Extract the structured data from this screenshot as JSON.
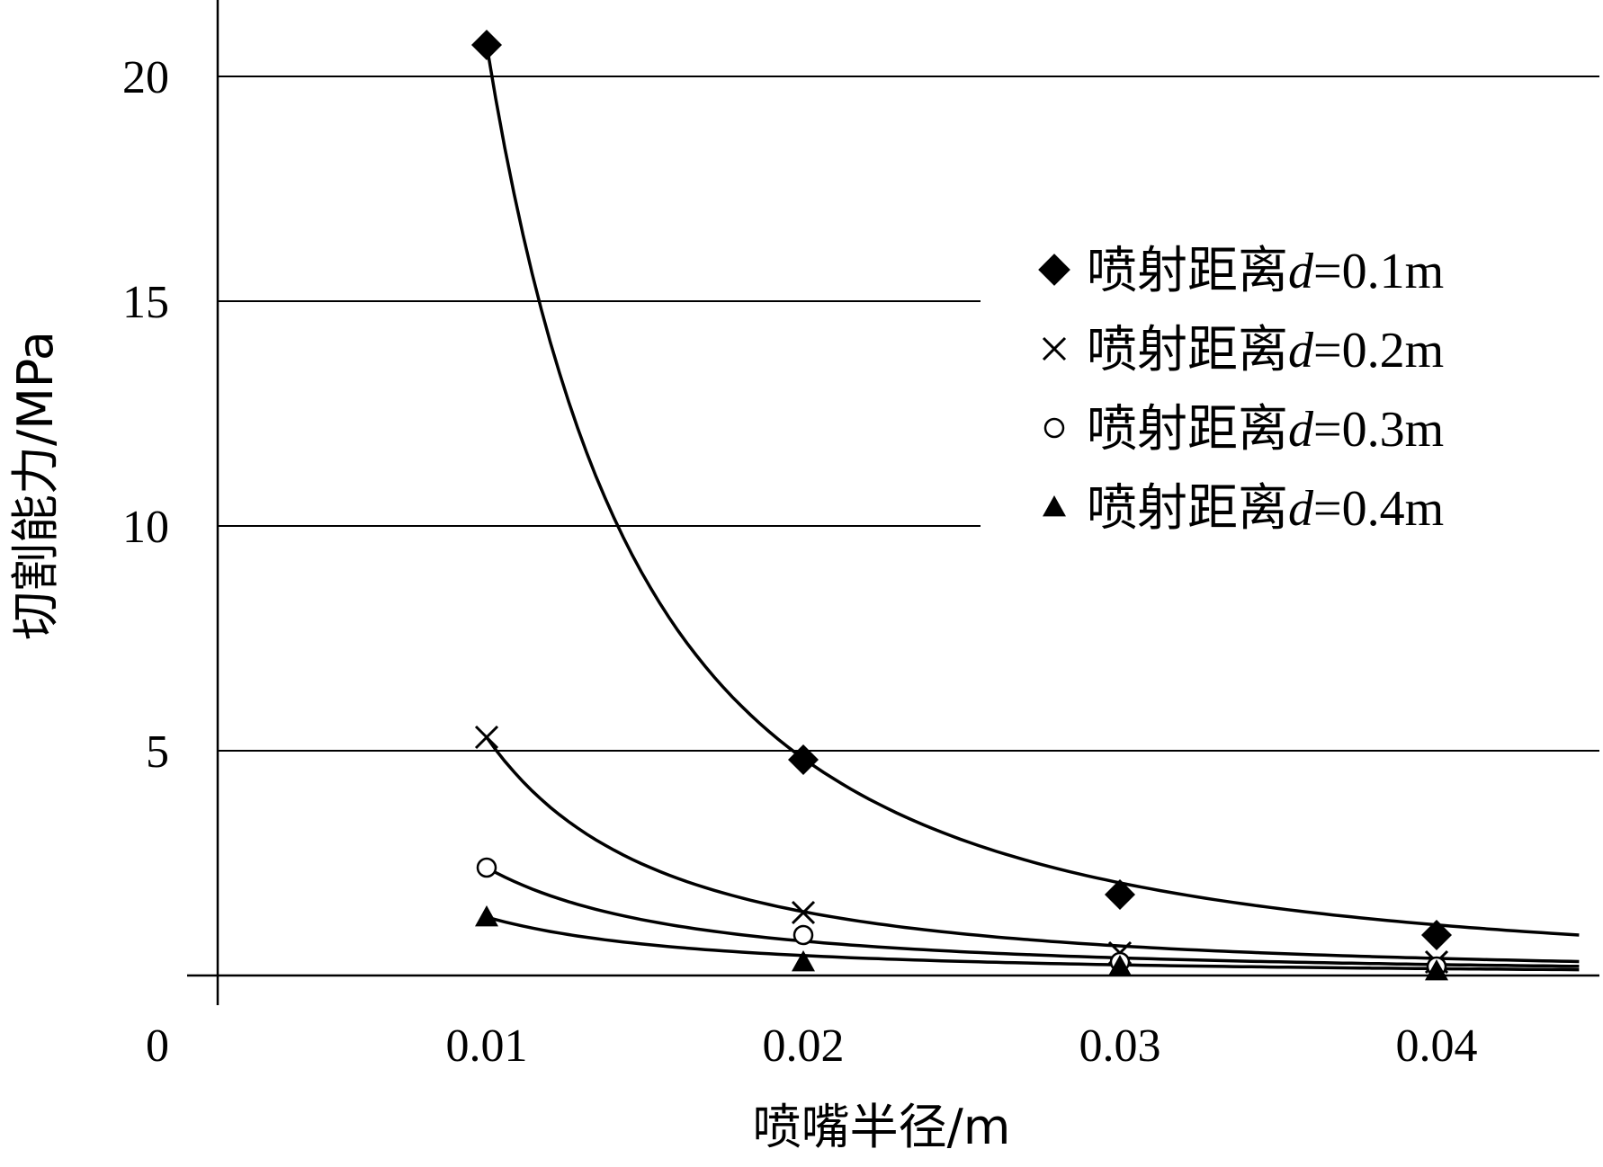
{
  "chart_data": {
    "type": "scatter",
    "title": "",
    "xlabel": "喷嘴半径/m",
    "ylabel": "切割能力/MPa",
    "x_ticks": [
      "0.01",
      "0.02",
      "0.03",
      "0.04"
    ],
    "y_ticks": [
      "0",
      "5",
      "10",
      "15",
      "20"
    ],
    "xlim": [
      0.0015,
      0.045
    ],
    "ylim": [
      0,
      21.5
    ],
    "grid": "horizontal",
    "legend_position": "upper-right",
    "x": [
      0.01,
      0.02,
      0.03,
      0.04
    ],
    "series": [
      {
        "name": "喷射距离d=0.1m",
        "legend_prefix": "喷射距离",
        "legend_var": "d",
        "legend_suffix": "=0.1m",
        "marker": "diamond",
        "values": [
          20.7,
          4.8,
          1.8,
          0.9
        ],
        "trend_exponent": 2.1
      },
      {
        "name": "喷射距离d=0.2m",
        "legend_prefix": "喷射距离",
        "legend_var": "d",
        "legend_suffix": "=0.2m",
        "marker": "x",
        "values": [
          5.3,
          1.4,
          0.5,
          0.3
        ],
        "trend_exponent": 1.9
      },
      {
        "name": "喷射距离d=0.3m",
        "legend_prefix": "喷射距离",
        "legend_var": "d",
        "legend_suffix": "=0.3m",
        "marker": "circle",
        "values": [
          2.4,
          0.9,
          0.3,
          0.2
        ],
        "trend_exponent": 1.65
      },
      {
        "name": "喷射距离d=0.4m",
        "legend_prefix": "喷射距离",
        "legend_var": "d",
        "legend_suffix": "=0.4m",
        "marker": "triangle",
        "values": [
          1.3,
          0.3,
          0.2,
          0.1
        ],
        "trend_exponent": 1.55
      }
    ]
  }
}
